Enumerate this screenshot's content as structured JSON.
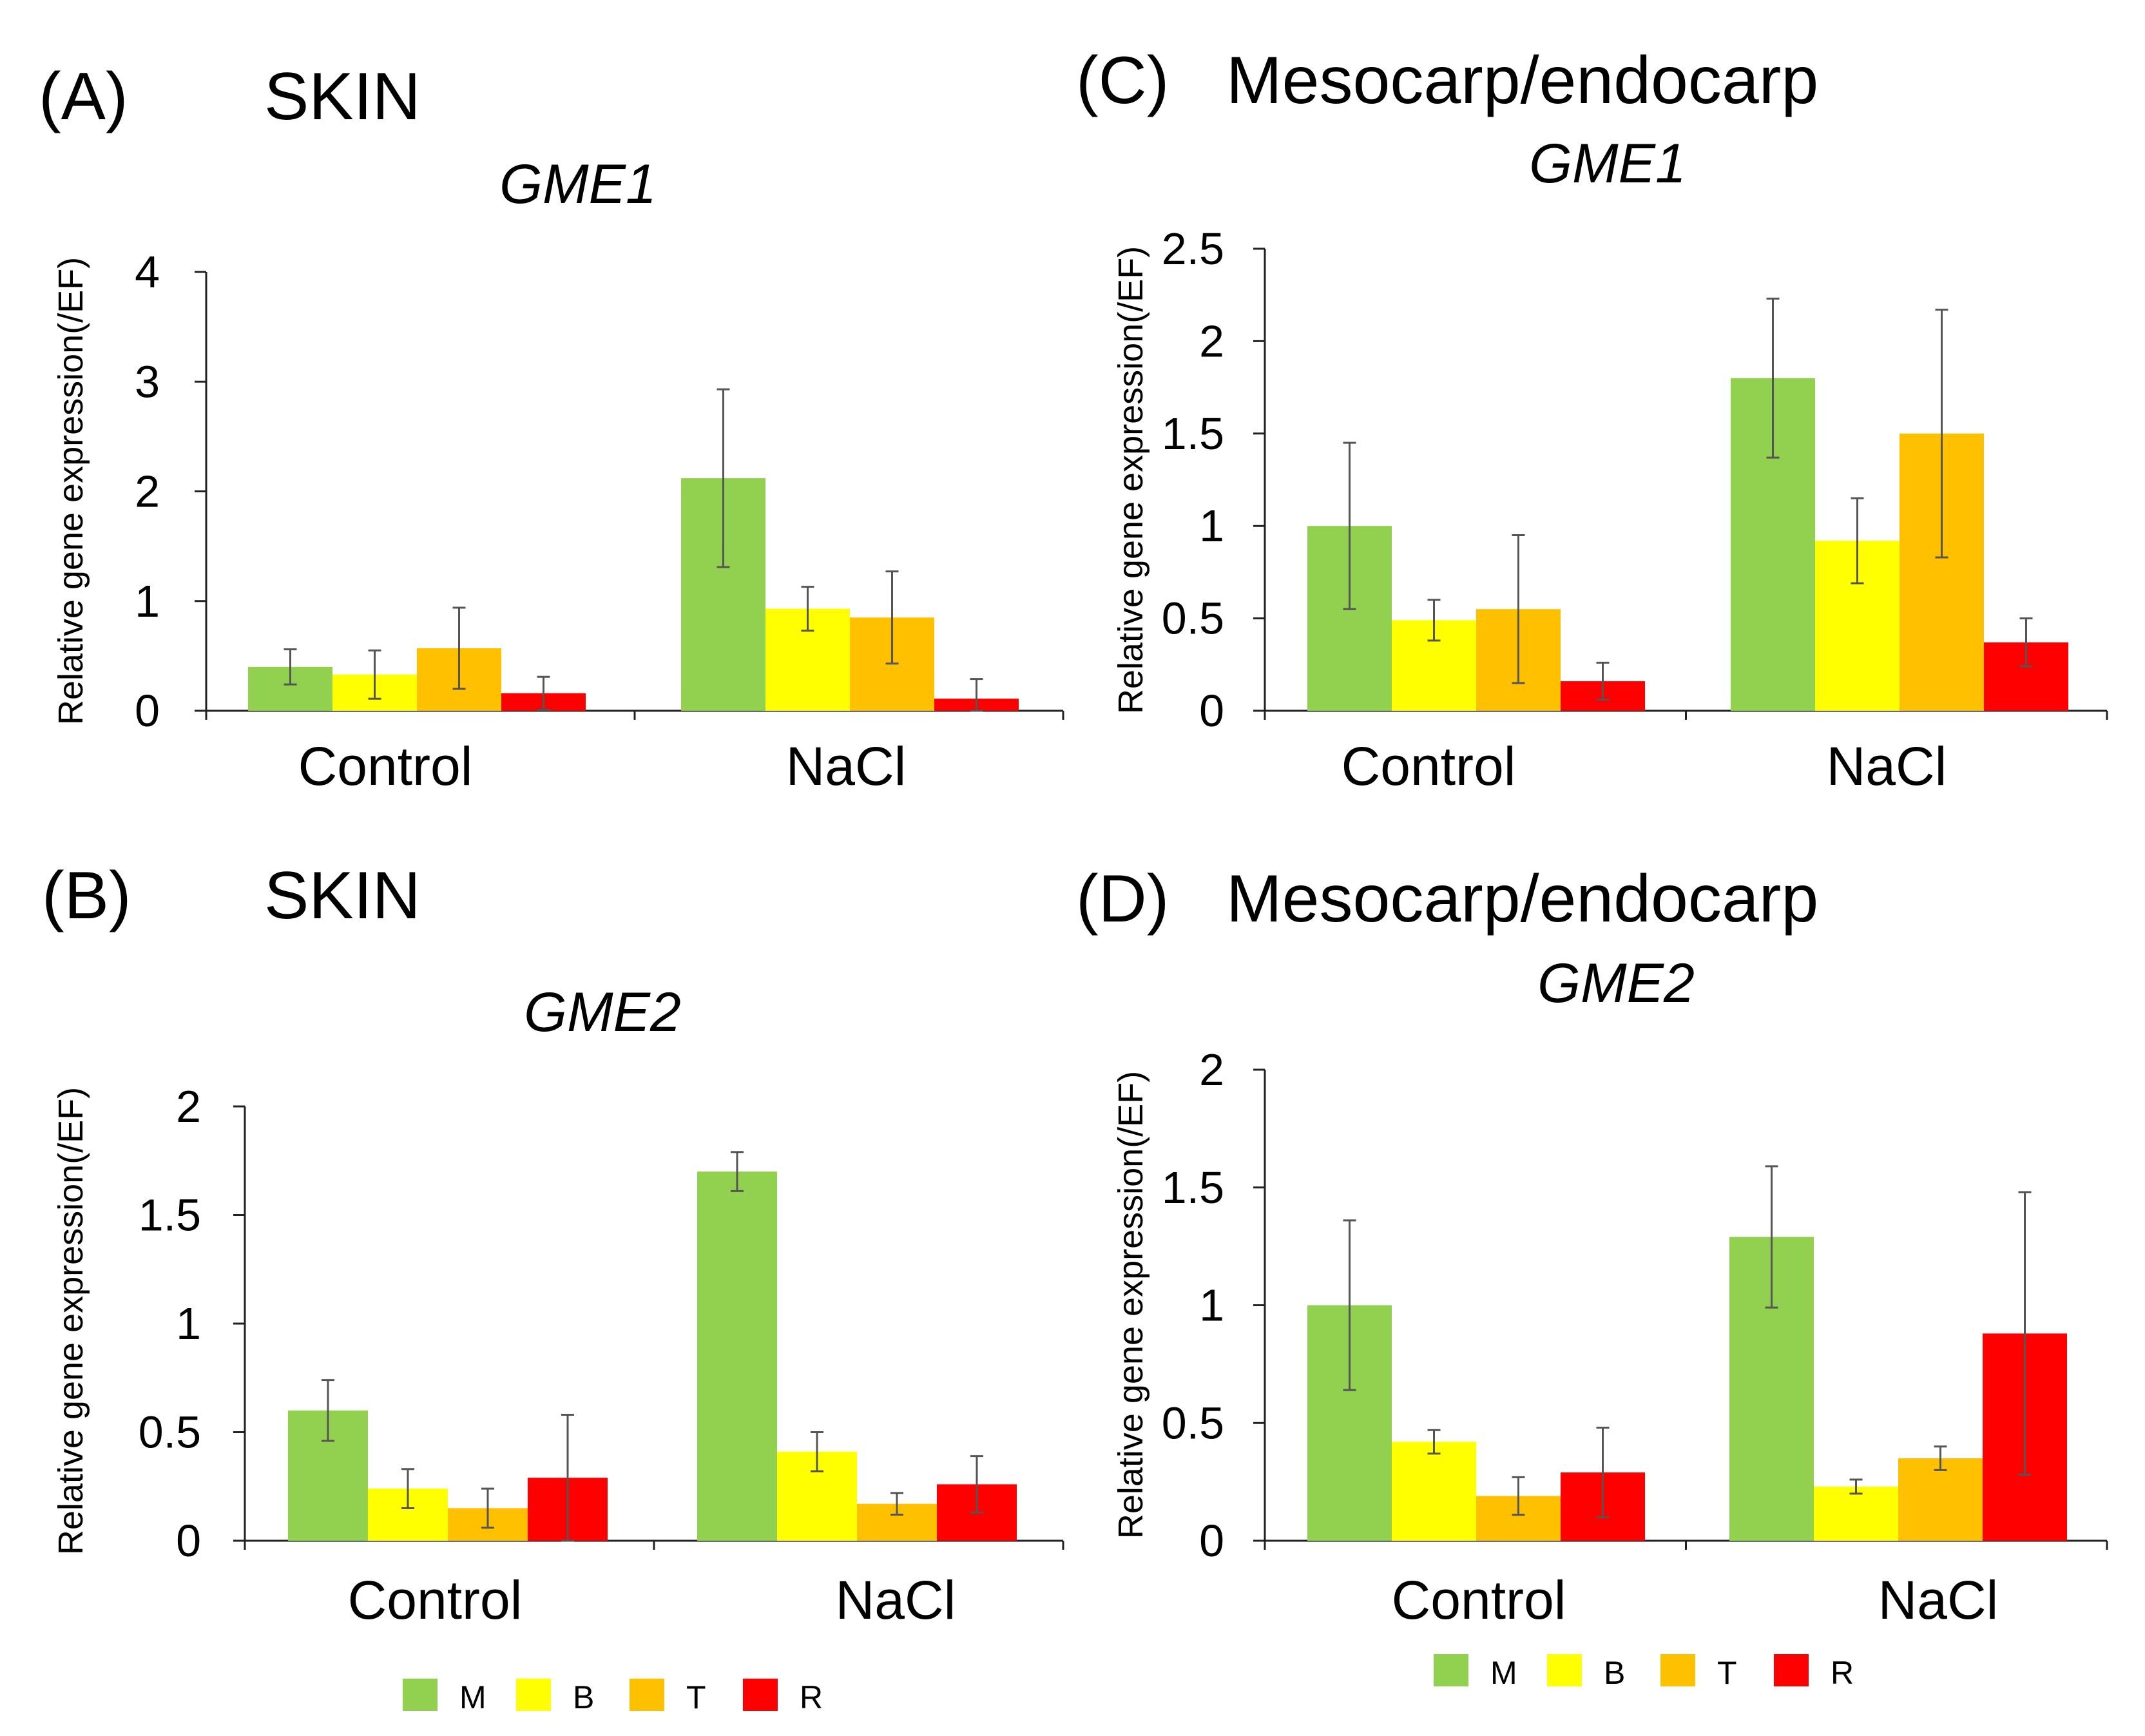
{
  "colors": {
    "M": "#92d050",
    "B": "#ffff00",
    "T": "#ffc000",
    "R": "#ff0000"
  },
  "chart_data": [
    {
      "id": "A",
      "type": "bar",
      "panel_label": "(A)",
      "title": "SKIN",
      "gene": "GME1",
      "ylabel": "Relative gene expression(/EF)",
      "ylim": [
        0,
        4
      ],
      "yticks": [
        "0",
        "1",
        "2",
        "3",
        "4"
      ],
      "ytick_values": [
        0,
        1,
        2,
        3,
        4
      ],
      "categories": [
        "Control",
        "NaCl"
      ],
      "series": [
        {
          "name": "M",
          "values": [
            0.4,
            2.12
          ],
          "errors": [
            0.16,
            0.81
          ]
        },
        {
          "name": "B",
          "values": [
            0.33,
            0.93
          ],
          "errors": [
            0.22,
            0.2
          ]
        },
        {
          "name": "T",
          "values": [
            0.57,
            0.85
          ],
          "errors": [
            0.37,
            0.42
          ]
        },
        {
          "name": "R",
          "values": [
            0.16,
            0.11
          ],
          "errors": [
            0.15,
            0.18
          ]
        }
      ]
    },
    {
      "id": "B",
      "type": "bar",
      "panel_label": "(B)",
      "title": "SKIN",
      "gene": "GME2",
      "ylabel": "Relative gene expression(/EF)",
      "ylim": [
        0,
        2
      ],
      "yticks": [
        "0",
        "0.5",
        "1",
        "1.5",
        "2"
      ],
      "ytick_values": [
        0,
        0.5,
        1,
        1.5,
        2
      ],
      "categories": [
        "Control",
        "NaCl"
      ],
      "series": [
        {
          "name": "M",
          "values": [
            0.6,
            1.7
          ],
          "errors": [
            0.14,
            0.09
          ]
        },
        {
          "name": "B",
          "values": [
            0.24,
            0.41
          ],
          "errors": [
            0.09,
            0.09
          ]
        },
        {
          "name": "T",
          "values": [
            0.15,
            0.17
          ],
          "errors": [
            0.09,
            0.05
          ]
        },
        {
          "name": "R",
          "values": [
            0.29,
            0.26
          ],
          "errors": [
            0.29,
            0.13
          ]
        }
      ]
    },
    {
      "id": "C",
      "type": "bar",
      "panel_label": "(C)",
      "title": "Mesocarp/endocarp",
      "gene": "GME1",
      "ylabel": "Relative gene expression(/EF)",
      "ylim": [
        0,
        2.5
      ],
      "yticks": [
        "0",
        "0.5",
        "1",
        "1.5",
        "2",
        "2.5"
      ],
      "ytick_values": [
        0,
        0.5,
        1,
        1.5,
        2,
        2.5
      ],
      "categories": [
        "Control",
        "NaCl"
      ],
      "series": [
        {
          "name": "M",
          "values": [
            1.0,
            1.8
          ],
          "errors": [
            0.45,
            0.43
          ]
        },
        {
          "name": "B",
          "values": [
            0.49,
            0.92
          ],
          "errors": [
            0.11,
            0.23
          ]
        },
        {
          "name": "T",
          "values": [
            0.55,
            1.5
          ],
          "errors": [
            0.4,
            0.67
          ]
        },
        {
          "name": "R",
          "values": [
            0.16,
            0.37
          ],
          "errors": [
            0.1,
            0.13
          ]
        }
      ]
    },
    {
      "id": "D",
      "type": "bar",
      "panel_label": "(D)",
      "title": "Mesocarp/endocarp",
      "gene": "GME2",
      "ylabel": "Relative gene expression(/EF)",
      "ylim": [
        0,
        2
      ],
      "yticks": [
        "0",
        "0.5",
        "1",
        "1.5",
        "2"
      ],
      "ytick_values": [
        0,
        0.5,
        1,
        1.5,
        2
      ],
      "categories": [
        "Control",
        "NaCl"
      ],
      "series": [
        {
          "name": "M",
          "values": [
            1.0,
            1.29
          ],
          "errors": [
            0.36,
            0.3
          ]
        },
        {
          "name": "B",
          "values": [
            0.42,
            0.23
          ],
          "errors": [
            0.05,
            0.03
          ]
        },
        {
          "name": "T",
          "values": [
            0.19,
            0.35
          ],
          "errors": [
            0.08,
            0.05
          ]
        },
        {
          "name": "R",
          "values": [
            0.29,
            0.88
          ],
          "errors": [
            0.19,
            0.6
          ]
        }
      ]
    }
  ],
  "legends": [
    {
      "panel": "B",
      "items": [
        "M",
        "B",
        "T",
        "R"
      ]
    },
    {
      "panel": "D",
      "items": [
        "M",
        "B",
        "T",
        "R"
      ]
    }
  ]
}
